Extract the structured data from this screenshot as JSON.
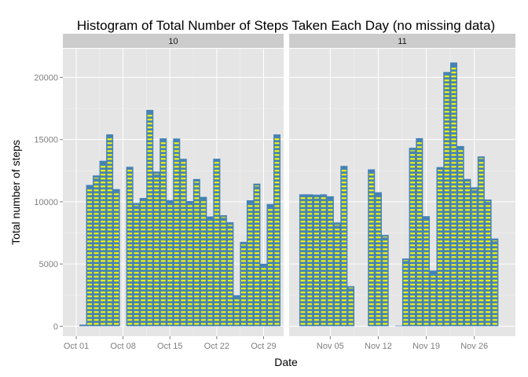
{
  "chart_data": {
    "type": "bar",
    "title": "Histogram of Total Number of Steps Taken Each Day (no missing data)",
    "xlabel": "Date",
    "ylabel": "Total number of steps",
    "ylim": [
      -800,
      22300
    ],
    "y_ticks": [
      0,
      5000,
      10000,
      15000,
      20000
    ],
    "grid": true,
    "legend": "none",
    "colors": {
      "fill": "#ffff00",
      "outline": "#4682b4",
      "panel": "#e5e5e5",
      "grid": "#ffffff",
      "strip": "#cccccc"
    },
    "panels": [
      {
        "strip": "10",
        "xlim": [
          "2012-09-29",
          "2012-11-01"
        ],
        "x_ticks": [
          {
            "date": "2012-10-01",
            "label": "Oct 01"
          },
          {
            "date": "2012-10-08",
            "label": "Oct 08"
          },
          {
            "date": "2012-10-15",
            "label": "Oct 15"
          },
          {
            "date": "2012-10-22",
            "label": "Oct 22"
          },
          {
            "date": "2012-10-29",
            "label": "Oct 29"
          }
        ],
        "points": [
          {
            "date": "2012-10-01",
            "steps": 0
          },
          {
            "date": "2012-10-02",
            "steps": 126
          },
          {
            "date": "2012-10-03",
            "steps": 11352
          },
          {
            "date": "2012-10-04",
            "steps": 12116
          },
          {
            "date": "2012-10-05",
            "steps": 13294
          },
          {
            "date": "2012-10-06",
            "steps": 15420
          },
          {
            "date": "2012-10-07",
            "steps": 11015
          },
          {
            "date": "2012-10-08",
            "steps": 0
          },
          {
            "date": "2012-10-09",
            "steps": 12811
          },
          {
            "date": "2012-10-10",
            "steps": 9900
          },
          {
            "date": "2012-10-11",
            "steps": 10304
          },
          {
            "date": "2012-10-12",
            "steps": 17382
          },
          {
            "date": "2012-10-13",
            "steps": 12426
          },
          {
            "date": "2012-10-14",
            "steps": 15098
          },
          {
            "date": "2012-10-15",
            "steps": 10139
          },
          {
            "date": "2012-10-16",
            "steps": 15084
          },
          {
            "date": "2012-10-17",
            "steps": 13452
          },
          {
            "date": "2012-10-18",
            "steps": 10056
          },
          {
            "date": "2012-10-19",
            "steps": 11829
          },
          {
            "date": "2012-10-20",
            "steps": 10395
          },
          {
            "date": "2012-10-21",
            "steps": 8821
          },
          {
            "date": "2012-10-22",
            "steps": 13460
          },
          {
            "date": "2012-10-23",
            "steps": 8918
          },
          {
            "date": "2012-10-24",
            "steps": 8355
          },
          {
            "date": "2012-10-25",
            "steps": 2492
          },
          {
            "date": "2012-10-26",
            "steps": 6778
          },
          {
            "date": "2012-10-27",
            "steps": 10119
          },
          {
            "date": "2012-10-28",
            "steps": 11458
          },
          {
            "date": "2012-10-29",
            "steps": 5018
          },
          {
            "date": "2012-10-30",
            "steps": 9819
          },
          {
            "date": "2012-10-31",
            "steps": 15414
          }
        ]
      },
      {
        "strip": "11",
        "xlim": [
          "2012-10-30",
          "2012-12-02"
        ],
        "x_ticks": [
          {
            "date": "2012-11-05",
            "label": "Nov 05"
          },
          {
            "date": "2012-11-12",
            "label": "Nov 12"
          },
          {
            "date": "2012-11-19",
            "label": "Nov 19"
          },
          {
            "date": "2012-11-26",
            "label": "Nov 26"
          }
        ],
        "points": [
          {
            "date": "2012-11-01",
            "steps": 10600
          },
          {
            "date": "2012-11-02",
            "steps": 10600
          },
          {
            "date": "2012-11-03",
            "steps": 10571
          },
          {
            "date": "2012-11-04",
            "steps": 10600
          },
          {
            "date": "2012-11-05",
            "steps": 10439
          },
          {
            "date": "2012-11-06",
            "steps": 8334
          },
          {
            "date": "2012-11-07",
            "steps": 12883
          },
          {
            "date": "2012-11-08",
            "steps": 3219
          },
          {
            "date": "2012-11-09",
            "steps": 0
          },
          {
            "date": "2012-11-10",
            "steps": 0
          },
          {
            "date": "2012-11-11",
            "steps": 12608
          },
          {
            "date": "2012-11-12",
            "steps": 10765
          },
          {
            "date": "2012-11-13",
            "steps": 7336
          },
          {
            "date": "2012-11-14",
            "steps": 0
          },
          {
            "date": "2012-11-15",
            "steps": 41
          },
          {
            "date": "2012-11-16",
            "steps": 5441
          },
          {
            "date": "2012-11-17",
            "steps": 14339
          },
          {
            "date": "2012-11-18",
            "steps": 15110
          },
          {
            "date": "2012-11-19",
            "steps": 8841
          },
          {
            "date": "2012-11-20",
            "steps": 4472
          },
          {
            "date": "2012-11-21",
            "steps": 12787
          },
          {
            "date": "2012-11-22",
            "steps": 20427
          },
          {
            "date": "2012-11-23",
            "steps": 21194
          },
          {
            "date": "2012-11-24",
            "steps": 14478
          },
          {
            "date": "2012-11-25",
            "steps": 11834
          },
          {
            "date": "2012-11-26",
            "steps": 11162
          },
          {
            "date": "2012-11-27",
            "steps": 13646
          },
          {
            "date": "2012-11-28",
            "steps": 10183
          },
          {
            "date": "2012-11-29",
            "steps": 7047
          },
          {
            "date": "2012-11-30",
            "steps": 0
          }
        ]
      }
    ]
  }
}
